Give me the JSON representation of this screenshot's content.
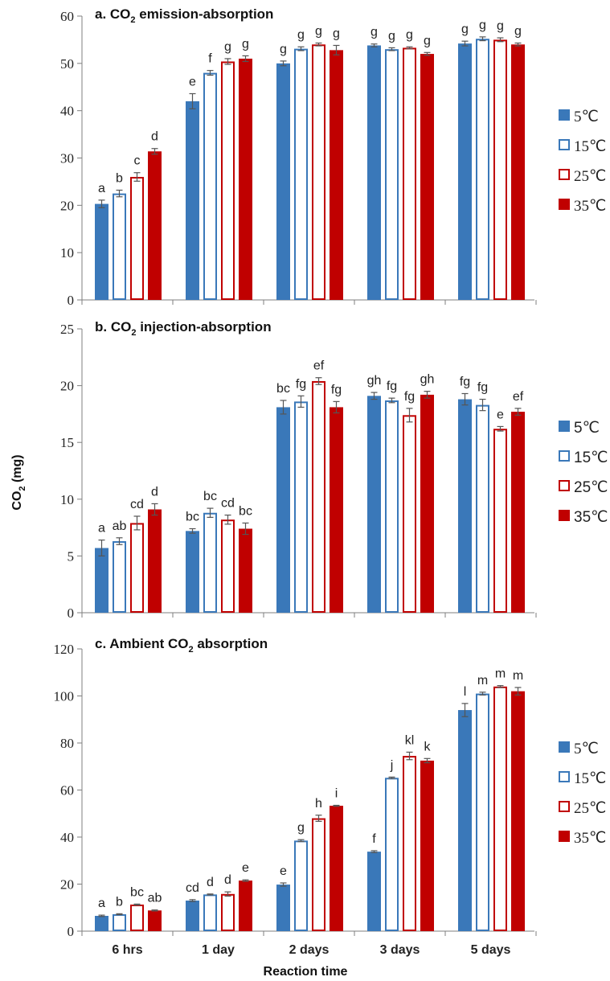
{
  "figure": {
    "ylabel_main": "CO",
    "ylabel_sub": "2",
    "ylabel_unit": " (mg)",
    "xlabel": "Reaction time"
  },
  "colors": {
    "blue": "#3a78b9",
    "red": "#c00000",
    "axis": "#7f7f7f"
  },
  "legend": [
    {
      "label": "5℃",
      "style": "filled-blue"
    },
    {
      "label": "15℃",
      "style": "hollow-blue"
    },
    {
      "label": "25℃",
      "style": "hollow-red"
    },
    {
      "label": "35℃",
      "style": "filled-red"
    }
  ],
  "chart_data": [
    {
      "type": "bar",
      "title_pre": "a. CO",
      "title_sub": "2",
      "title_post": " emission-absorption",
      "categories": [
        "6 hrs",
        "1 day",
        "2 days",
        "3 days",
        "5 days"
      ],
      "ylim": [
        0,
        60
      ],
      "yticks": [
        0,
        10,
        20,
        30,
        40,
        50,
        60
      ],
      "series": [
        {
          "name": "5℃",
          "values": [
            20.3,
            42.0,
            50.0,
            53.8,
            54.2
          ],
          "errors": [
            0.8,
            1.6,
            0.5,
            0.3,
            0.5
          ],
          "letters": [
            "a",
            "e",
            "g",
            "g",
            "g"
          ]
        },
        {
          "name": "15℃",
          "values": [
            22.5,
            48.0,
            53.1,
            53.0,
            55.2
          ],
          "errors": [
            0.7,
            0.5,
            0.4,
            0.3,
            0.4
          ],
          "letters": [
            "b",
            "f",
            "g",
            "g",
            "g"
          ]
        },
        {
          "name": "25℃",
          "values": [
            26.0,
            50.4,
            54.0,
            53.3,
            55.0
          ],
          "errors": [
            0.9,
            0.6,
            0.3,
            0.2,
            0.4
          ],
          "letters": [
            "c",
            "g",
            "g",
            "g",
            "g"
          ]
        },
        {
          "name": "35℃",
          "values": [
            31.4,
            51.0,
            52.8,
            52.0,
            54.0
          ],
          "errors": [
            0.6,
            0.6,
            1.0,
            0.3,
            0.3
          ],
          "letters": [
            "d",
            "g",
            "g",
            "g",
            "g"
          ]
        }
      ]
    },
    {
      "type": "bar",
      "title_pre": "b. CO",
      "title_sub": "2",
      "title_post": " injection-absorption",
      "categories": [
        "6 hrs",
        "1 day",
        "2 days",
        "3 days",
        "5 days"
      ],
      "ylim": [
        0,
        25
      ],
      "yticks": [
        0,
        5,
        10,
        15,
        20,
        25
      ],
      "series": [
        {
          "name": "5℃",
          "values": [
            5.7,
            7.2,
            18.1,
            19.1,
            18.8
          ],
          "errors": [
            0.7,
            0.2,
            0.6,
            0.3,
            0.5
          ],
          "letters": [
            "a",
            "bc",
            "bc",
            "gh",
            "fg"
          ]
        },
        {
          "name": "15℃",
          "values": [
            6.3,
            8.8,
            18.6,
            18.7,
            18.3
          ],
          "errors": [
            0.3,
            0.4,
            0.5,
            0.2,
            0.5
          ],
          "letters": [
            "ab",
            "bc",
            "fg",
            "fg",
            "fg"
          ]
        },
        {
          "name": "25℃",
          "values": [
            7.9,
            8.2,
            20.4,
            17.4,
            16.2
          ],
          "errors": [
            0.6,
            0.4,
            0.3,
            0.6,
            0.2
          ],
          "letters": [
            "cd",
            "cd",
            "ef",
            "fg",
            "e"
          ]
        },
        {
          "name": "35℃",
          "values": [
            9.1,
            7.4,
            18.1,
            19.2,
            17.7
          ],
          "errors": [
            0.5,
            0.5,
            0.5,
            0.3,
            0.3
          ],
          "letters": [
            "d",
            "bc",
            "fg",
            "gh",
            "ef"
          ]
        }
      ]
    },
    {
      "type": "bar",
      "title_pre": "c. Ambient CO",
      "title_sub": "2",
      "title_post": " absorption",
      "categories": [
        "6 hrs",
        "1 day",
        "2 days",
        "3 days",
        "5 days"
      ],
      "ylim": [
        0,
        120
      ],
      "yticks": [
        0,
        20,
        40,
        60,
        80,
        100,
        120
      ],
      "series": [
        {
          "name": "5℃",
          "values": [
            6.5,
            13.0,
            19.8,
            33.8,
            94.0
          ],
          "errors": [
            0.3,
            0.4,
            0.7,
            0.4,
            2.8
          ],
          "letters": [
            "a",
            "cd",
            "e",
            "f",
            "l"
          ]
        },
        {
          "name": "15℃",
          "values": [
            7.2,
            15.6,
            38.5,
            65.2,
            101.0
          ],
          "errors": [
            0.2,
            0.2,
            0.4,
            0.3,
            0.6
          ],
          "letters": [
            "b",
            "d",
            "g",
            "j",
            "m"
          ]
        },
        {
          "name": "25℃",
          "values": [
            11.3,
            15.8,
            48.0,
            74.5,
            104.0
          ],
          "errors": [
            0.2,
            0.9,
            1.3,
            1.6,
            0.4
          ],
          "letters": [
            "bc",
            "d",
            "h",
            "kl",
            "m"
          ]
        },
        {
          "name": "35℃",
          "values": [
            8.8,
            21.5,
            53.3,
            72.5,
            102.0
          ],
          "errors": [
            0.2,
            0.3,
            0.2,
            0.9,
            1.6
          ],
          "letters": [
            "ab",
            "e",
            "i",
            "k",
            "m"
          ]
        }
      ]
    }
  ]
}
